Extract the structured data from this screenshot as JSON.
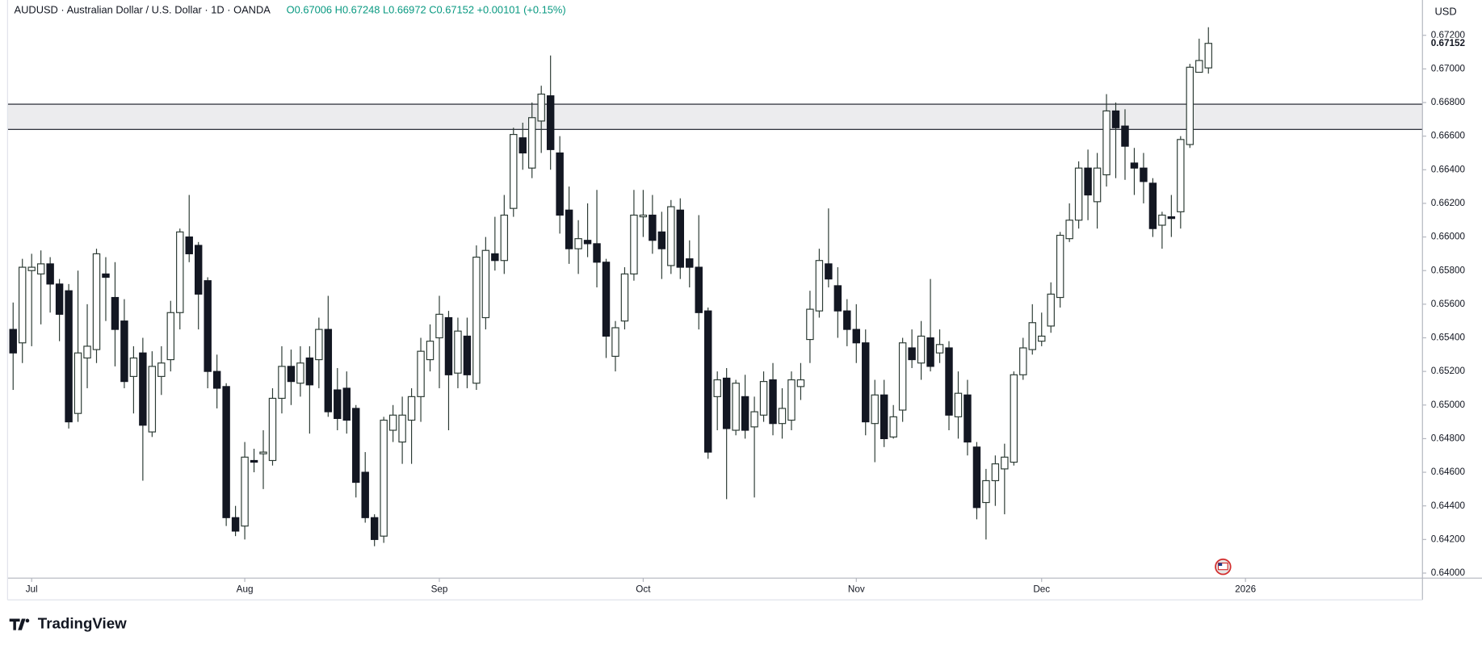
{
  "chart_data": {
    "type": "candlestick",
    "title": "AUDUSD · Australian Dollar / U.S. Dollar · 1D · OANDA",
    "subtitle": "O0.67006 H0.67248 L0.66972 C0.67152 +0.00101 (+0.15%)",
    "currency": "USD",
    "brand": "TradingView",
    "up_color": "#ffffff",
    "down_color": "#131722",
    "border_color": "#2b3a33",
    "xlim": [
      -0.6,
      152.1
    ],
    "xticks": [
      {
        "value": 2,
        "label": "Jul"
      },
      {
        "value": 25,
        "label": "Aug"
      },
      {
        "value": 46,
        "label": "Sep"
      },
      {
        "value": 68,
        "label": "Oct"
      },
      {
        "value": 91,
        "label": "Nov"
      },
      {
        "value": 111,
        "label": "Dec"
      },
      {
        "value": 133,
        "label": "2026"
      }
    ],
    "ylim": [
      0.6397,
      0.6741
    ],
    "yticks": [
      {
        "value": 0.64,
        "label": "0.64000"
      },
      {
        "value": 0.642,
        "label": "0.64200"
      },
      {
        "value": 0.644,
        "label": "0.64400"
      },
      {
        "value": 0.646,
        "label": "0.64600"
      },
      {
        "value": 0.648,
        "label": "0.64800"
      },
      {
        "value": 0.65,
        "label": "0.65000"
      },
      {
        "value": 0.652,
        "label": "0.65200"
      },
      {
        "value": 0.654,
        "label": "0.65400"
      },
      {
        "value": 0.656,
        "label": "0.65600"
      },
      {
        "value": 0.658,
        "label": "0.65800"
      },
      {
        "value": 0.66,
        "label": "0.66000"
      },
      {
        "value": 0.662,
        "label": "0.66200"
      },
      {
        "value": 0.664,
        "label": "0.66400"
      },
      {
        "value": 0.666,
        "label": "0.66600"
      },
      {
        "value": 0.668,
        "label": "0.66800"
      },
      {
        "value": 0.67,
        "label": "0.67000"
      },
      {
        "value": 0.672,
        "label": "0.67200"
      }
    ],
    "last_price": 0.67152,
    "zone": [
      0.6664,
      0.6679
    ],
    "ohlc": [
      [
        0.6545,
        0.6561,
        0.6509,
        0.6531
      ],
      [
        0.6537,
        0.6587,
        0.6525,
        0.6582
      ],
      [
        0.658,
        0.659,
        0.6535,
        0.6582
      ],
      [
        0.6578,
        0.6592,
        0.6548,
        0.6584
      ],
      [
        0.6584,
        0.6588,
        0.6555,
        0.6572
      ],
      [
        0.6572,
        0.6575,
        0.6538,
        0.6554
      ],
      [
        0.6568,
        0.6572,
        0.6486,
        0.649
      ],
      [
        0.6495,
        0.658,
        0.649,
        0.6531
      ],
      [
        0.6528,
        0.656,
        0.651,
        0.6535
      ],
      [
        0.6533,
        0.6593,
        0.6525,
        0.659
      ],
      [
        0.6578,
        0.6588,
        0.655,
        0.6576
      ],
      [
        0.6564,
        0.6585,
        0.6523,
        0.6545
      ],
      [
        0.655,
        0.6563,
        0.651,
        0.6514
      ],
      [
        0.6517,
        0.6535,
        0.6495,
        0.6528
      ],
      [
        0.6531,
        0.654,
        0.6455,
        0.6488
      ],
      [
        0.6484,
        0.6532,
        0.6481,
        0.6523
      ],
      [
        0.6517,
        0.6535,
        0.6506,
        0.6525
      ],
      [
        0.6527,
        0.6562,
        0.652,
        0.6555
      ],
      [
        0.6555,
        0.6605,
        0.6545,
        0.6603
      ],
      [
        0.66,
        0.6625,
        0.6585,
        0.659
      ],
      [
        0.6595,
        0.6597,
        0.6545,
        0.6566
      ],
      [
        0.6574,
        0.6576,
        0.651,
        0.652
      ],
      [
        0.652,
        0.653,
        0.6498,
        0.651
      ],
      [
        0.6511,
        0.6513,
        0.6428,
        0.6433
      ],
      [
        0.6433,
        0.644,
        0.6422,
        0.6425
      ],
      [
        0.6428,
        0.6478,
        0.642,
        0.6469
      ],
      [
        0.6467,
        0.6474,
        0.646,
        0.6466
      ],
      [
        0.6471,
        0.6485,
        0.645,
        0.6472
      ],
      [
        0.6467,
        0.651,
        0.6464,
        0.6504
      ],
      [
        0.6504,
        0.6535,
        0.6495,
        0.6523
      ],
      [
        0.6523,
        0.6533,
        0.65,
        0.6514
      ],
      [
        0.6513,
        0.6535,
        0.6505,
        0.6525
      ],
      [
        0.6528,
        0.6535,
        0.6483,
        0.6512
      ],
      [
        0.6527,
        0.6552,
        0.651,
        0.6545
      ],
      [
        0.6545,
        0.6565,
        0.6493,
        0.6496
      ],
      [
        0.6509,
        0.6522,
        0.6485,
        0.6492
      ],
      [
        0.651,
        0.652,
        0.6483,
        0.6491
      ],
      [
        0.6498,
        0.65,
        0.6445,
        0.6454
      ],
      [
        0.646,
        0.6472,
        0.643,
        0.6433
      ],
      [
        0.6433,
        0.6435,
        0.6416,
        0.642
      ],
      [
        0.6422,
        0.6493,
        0.6418,
        0.6491
      ],
      [
        0.6485,
        0.65,
        0.6478,
        0.6494
      ],
      [
        0.6478,
        0.6505,
        0.6465,
        0.6494
      ],
      [
        0.6491,
        0.651,
        0.6465,
        0.6505
      ],
      [
        0.6505,
        0.654,
        0.649,
        0.6532
      ],
      [
        0.6527,
        0.6548,
        0.652,
        0.6538
      ],
      [
        0.654,
        0.6565,
        0.651,
        0.6554
      ],
      [
        0.6552,
        0.6556,
        0.6485,
        0.6518
      ],
      [
        0.6519,
        0.6552,
        0.651,
        0.6544
      ],
      [
        0.6541,
        0.6552,
        0.651,
        0.6518
      ],
      [
        0.6513,
        0.6595,
        0.6509,
        0.6588
      ],
      [
        0.6552,
        0.66,
        0.6545,
        0.6592
      ],
      [
        0.659,
        0.6612,
        0.658,
        0.6586
      ],
      [
        0.6586,
        0.6625,
        0.6578,
        0.6613
      ],
      [
        0.6617,
        0.6665,
        0.6612,
        0.6661
      ],
      [
        0.6659,
        0.6668,
        0.664,
        0.665
      ],
      [
        0.6641,
        0.668,
        0.6635,
        0.6671
      ],
      [
        0.6669,
        0.669,
        0.665,
        0.6685
      ],
      [
        0.6684,
        0.6708,
        0.664,
        0.6652
      ],
      [
        0.665,
        0.666,
        0.6602,
        0.6613
      ],
      [
        0.6616,
        0.663,
        0.6584,
        0.6593
      ],
      [
        0.6593,
        0.661,
        0.6578,
        0.6599
      ],
      [
        0.6598,
        0.662,
        0.6588,
        0.6596
      ],
      [
        0.6596,
        0.6628,
        0.657,
        0.6585
      ],
      [
        0.6585,
        0.6587,
        0.6528,
        0.6541
      ],
      [
        0.6529,
        0.655,
        0.652,
        0.6546
      ],
      [
        0.655,
        0.6582,
        0.6545,
        0.6578
      ],
      [
        0.6578,
        0.6628,
        0.6574,
        0.6613
      ],
      [
        0.6612,
        0.6628,
        0.66,
        0.6613
      ],
      [
        0.6613,
        0.6625,
        0.659,
        0.6598
      ],
      [
        0.6603,
        0.6615,
        0.6575,
        0.6593
      ],
      [
        0.6583,
        0.6622,
        0.6578,
        0.6618
      ],
      [
        0.6616,
        0.6623,
        0.6575,
        0.6582
      ],
      [
        0.6587,
        0.6598,
        0.657,
        0.6582
      ],
      [
        0.6582,
        0.6613,
        0.6545,
        0.6555
      ],
      [
        0.6556,
        0.6558,
        0.6468,
        0.6472
      ],
      [
        0.6505,
        0.652,
        0.6485,
        0.6515
      ],
      [
        0.6516,
        0.6522,
        0.6444,
        0.6486
      ],
      [
        0.6485,
        0.6515,
        0.6482,
        0.6513
      ],
      [
        0.6505,
        0.6518,
        0.648,
        0.6485
      ],
      [
        0.6487,
        0.6505,
        0.6445,
        0.6496
      ],
      [
        0.6494,
        0.652,
        0.649,
        0.6514
      ],
      [
        0.6515,
        0.6525,
        0.6482,
        0.6489
      ],
      [
        0.6489,
        0.651,
        0.648,
        0.6498
      ],
      [
        0.6491,
        0.652,
        0.6485,
        0.6515
      ],
      [
        0.6511,
        0.6525,
        0.6503,
        0.6515
      ],
      [
        0.6539,
        0.6568,
        0.6525,
        0.6557
      ],
      [
        0.6556,
        0.6593,
        0.6552,
        0.6586
      ],
      [
        0.6584,
        0.6617,
        0.657,
        0.6575
      ],
      [
        0.6571,
        0.6582,
        0.654,
        0.6556
      ],
      [
        0.6556,
        0.6563,
        0.6535,
        0.6545
      ],
      [
        0.6545,
        0.656,
        0.6525,
        0.6537
      ],
      [
        0.6537,
        0.6545,
        0.6482,
        0.649
      ],
      [
        0.6489,
        0.6515,
        0.6466,
        0.6506
      ],
      [
        0.6506,
        0.6515,
        0.6475,
        0.648
      ],
      [
        0.6481,
        0.65,
        0.648,
        0.6493
      ],
      [
        0.6497,
        0.654,
        0.649,
        0.6537
      ],
      [
        0.6534,
        0.6545,
        0.6522,
        0.6527
      ],
      [
        0.6525,
        0.655,
        0.6515,
        0.6541
      ],
      [
        0.654,
        0.6575,
        0.652,
        0.6523
      ],
      [
        0.6531,
        0.6545,
        0.6525,
        0.6536
      ],
      [
        0.6534,
        0.6538,
        0.6485,
        0.6494
      ],
      [
        0.6493,
        0.652,
        0.648,
        0.6507
      ],
      [
        0.6506,
        0.6515,
        0.647,
        0.6478
      ],
      [
        0.6475,
        0.6478,
        0.6432,
        0.6439
      ],
      [
        0.6442,
        0.6462,
        0.642,
        0.6455
      ],
      [
        0.6455,
        0.647,
        0.644,
        0.6465
      ],
      [
        0.6462,
        0.6477,
        0.6435,
        0.6469
      ],
      [
        0.6466,
        0.652,
        0.6464,
        0.6518
      ],
      [
        0.6518,
        0.654,
        0.6515,
        0.6534
      ],
      [
        0.6533,
        0.656,
        0.653,
        0.6549
      ],
      [
        0.6538,
        0.6555,
        0.6535,
        0.6541
      ],
      [
        0.6547,
        0.6573,
        0.6543,
        0.6566
      ],
      [
        0.6564,
        0.6603,
        0.6558,
        0.6601
      ],
      [
        0.6599,
        0.662,
        0.6597,
        0.661
      ],
      [
        0.661,
        0.6645,
        0.6605,
        0.6641
      ],
      [
        0.6641,
        0.6652,
        0.661,
        0.6625
      ],
      [
        0.6621,
        0.665,
        0.6605,
        0.6641
      ],
      [
        0.6637,
        0.6685,
        0.663,
        0.6675
      ],
      [
        0.6675,
        0.668,
        0.6635,
        0.6665
      ],
      [
        0.6666,
        0.6676,
        0.6634,
        0.6654
      ],
      [
        0.6644,
        0.6653,
        0.6625,
        0.6641
      ],
      [
        0.6641,
        0.665,
        0.662,
        0.6633
      ],
      [
        0.6632,
        0.6635,
        0.66,
        0.6605
      ],
      [
        0.6607,
        0.6615,
        0.6593,
        0.6613
      ],
      [
        0.6612,
        0.6625,
        0.66,
        0.6611
      ],
      [
        0.6615,
        0.666,
        0.6605,
        0.6658
      ],
      [
        0.6655,
        0.6703,
        0.6653,
        0.6701
      ],
      [
        0.6698,
        0.6718,
        0.6698,
        0.6705
      ],
      [
        0.67006,
        0.67248,
        0.66972,
        0.67152
      ]
    ]
  }
}
